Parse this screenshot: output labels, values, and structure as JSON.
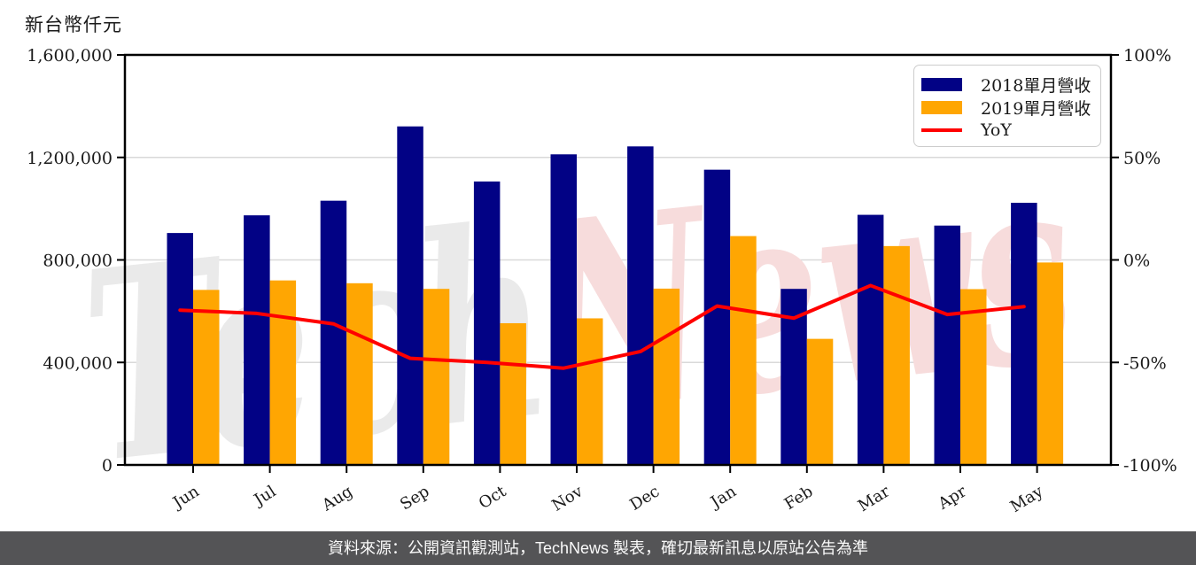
{
  "chart_data": {
    "type": "bar",
    "categories": [
      "Jun",
      "Jul",
      "Aug",
      "Sep",
      "Oct",
      "Nov",
      "Dec",
      "Jan",
      "Feb",
      "Mar",
      "Apr",
      "May"
    ],
    "series": [
      {
        "name": "2018單月營收",
        "kind": "bar",
        "axis": "left",
        "color": "#020285",
        "values": [
          905000,
          974000,
          1031000,
          1321000,
          1106000,
          1212000,
          1243000,
          1152000,
          687000,
          976000,
          934000,
          1023000
        ]
      },
      {
        "name": "2019單月營收",
        "kind": "bar",
        "axis": "left",
        "color": "#FFA602",
        "values": [
          683000,
          720000,
          709000,
          687000,
          553000,
          572000,
          688000,
          893000,
          492000,
          854000,
          686000,
          790000
        ]
      },
      {
        "name": "YoY",
        "kind": "line",
        "axis": "right",
        "color": "#FF0000",
        "values": [
          -24.5,
          -26.1,
          -31.2,
          -48.0,
          -50.0,
          -52.8,
          -44.7,
          -22.5,
          -28.4,
          -12.5,
          -26.6,
          -22.8
        ]
      }
    ],
    "title": "",
    "ylabel_left": "新台幣仟元",
    "left_axis": {
      "min": 0,
      "max": 1600000,
      "tick_values": [
        0,
        400000,
        800000,
        1200000,
        1600000
      ],
      "tick_labels": [
        "0",
        "400,000",
        "800,000",
        "1,200,000",
        "1,600,000"
      ]
    },
    "right_axis": {
      "min": -100,
      "max": 100,
      "tick_values": [
        -100,
        -50,
        0,
        50,
        100
      ],
      "tick_labels": [
        "-100%",
        "-50%",
        "0%",
        "50%",
        "100%"
      ]
    },
    "grid": true,
    "legend_position": "top-right"
  },
  "watermark": {
    "text": "TechNews",
    "part1": "Tech",
    "part2": "News",
    "part1_color": "#eaeaea",
    "part2_color": "#f7dcdc"
  },
  "footer": {
    "text": "資料來源：公開資訊觀測站，TechNews 製表，確切最新訊息以原站公告為準",
    "bg_color": "#545456"
  },
  "style": {
    "grid_color": "#d9d9d9",
    "axis_color": "#000000",
    "label_color": "#1a1a1a"
  }
}
